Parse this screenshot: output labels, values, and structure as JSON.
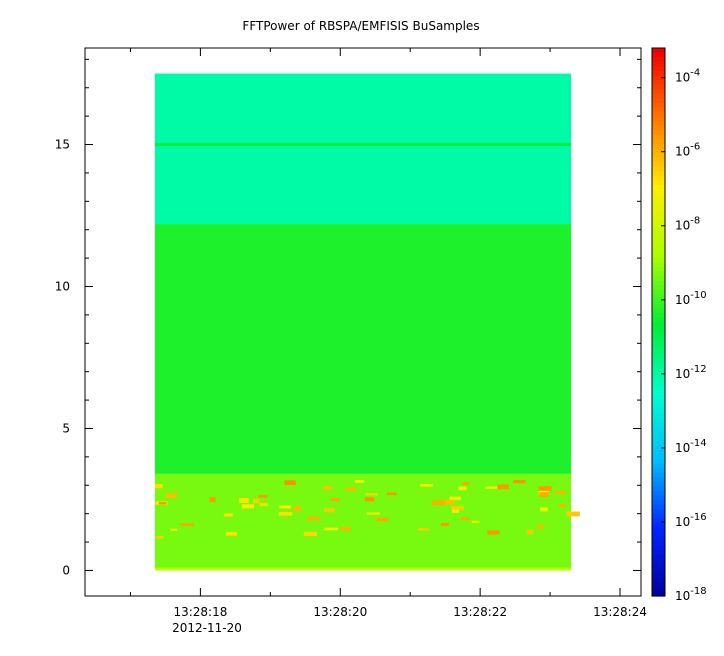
{
  "chart_data": {
    "type": "heatmap",
    "title": "FFTPower of RBSPA/EMFISIS  BuSamples",
    "xlabel": "",
    "ylabel": "",
    "x_ticks": [
      {
        "label": "13:28:18",
        "t": 18
      },
      {
        "label": "13:28:20",
        "t": 20
      },
      {
        "label": "13:28:22",
        "t": 22
      },
      {
        "label": "13:28:24",
        "t": 24
      }
    ],
    "x_minor_ticks": [
      17,
      19,
      21,
      23
    ],
    "x_date_label": "2012-11-20",
    "xlim": [
      16.35,
      24.3
    ],
    "data_xrange": [
      17.35,
      23.3
    ],
    "y_ticks": [
      0,
      5,
      10,
      15
    ],
    "ylim": [
      -0.9,
      18.4
    ],
    "data_yrange": [
      0,
      17.5
    ],
    "colorbar": {
      "scale": "log",
      "range_exponent": [
        -18,
        -3.2
      ],
      "tick_labels": [
        {
          "base": "10",
          "exp": "-4",
          "value": -4
        },
        {
          "base": "10",
          "exp": "-6",
          "value": -6
        },
        {
          "base": "10",
          "exp": "-8",
          "value": -8
        },
        {
          "base": "10",
          "exp": "-10",
          "value": -10
        },
        {
          "base": "10",
          "exp": "-12",
          "value": -12
        },
        {
          "base": "10",
          "exp": "-14",
          "value": -14
        },
        {
          "base": "10",
          "exp": "-16",
          "value": -16
        },
        {
          "base": "10",
          "exp": "-18",
          "value": -18
        }
      ],
      "colors": [
        "#000099",
        "#0022ff",
        "#00bbff",
        "#00ffcc",
        "#00ee33",
        "#aaff00",
        "#ffee00",
        "#ff7700",
        "#ee0000"
      ]
    },
    "bands": [
      {
        "y_from": 12.2,
        "y_to": 17.5,
        "level": -12.0
      },
      {
        "y_from": 3.4,
        "y_to": 12.2,
        "level": -10.3
      },
      {
        "y_from": 0.0,
        "y_to": 3.4,
        "level": -9.3
      },
      {
        "y_from": 14.95,
        "y_to": 15.05,
        "level": -10.6
      }
    ]
  }
}
